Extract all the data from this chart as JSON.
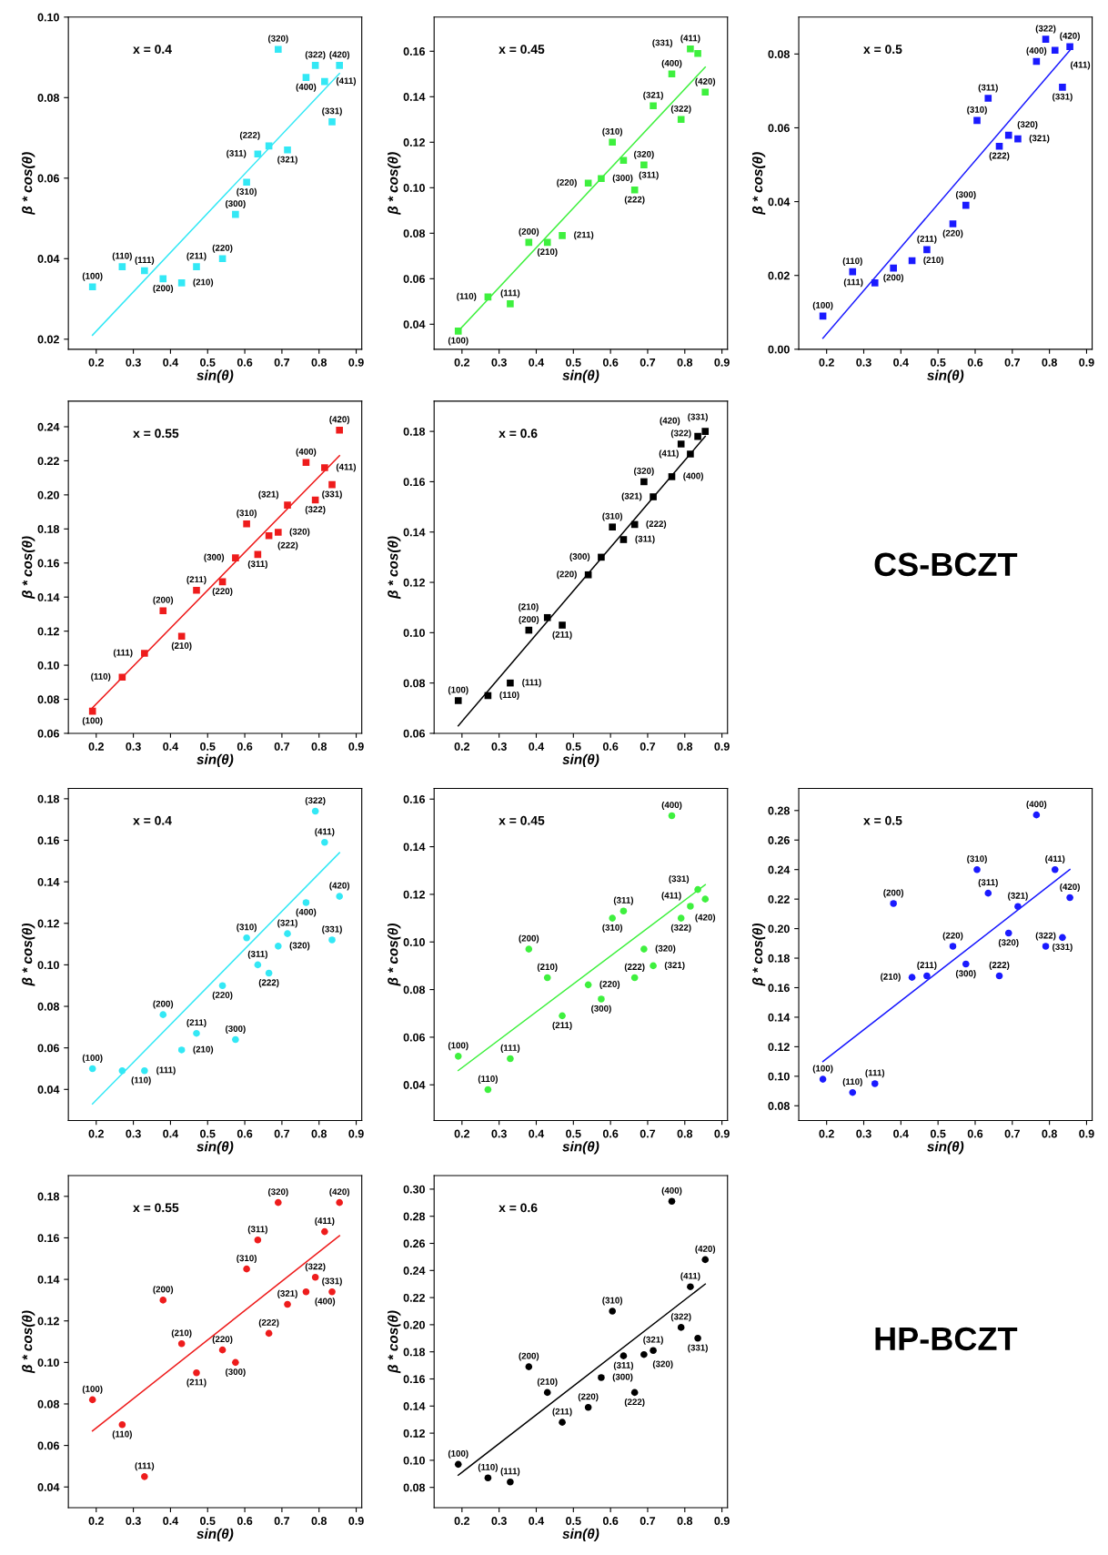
{
  "chart_data": [
    {
      "type": "scatter",
      "xlabel": "sin(θ)",
      "ylabel": "β * cos(θ)",
      "xlim": [
        0.125,
        0.915
      ],
      "ylim": [
        0.0175,
        0.1
      ],
      "xticks": [
        0.2,
        0.3,
        0.4,
        0.5,
        0.6,
        0.7,
        0.8,
        0.9
      ],
      "yticks": [
        0.02,
        0.04,
        0.06,
        0.08,
        {
          "value": 0.1,
          "label": "0.10"
        }
      ],
      "grid": false,
      "series": [
        {
          "type": "scatter",
          "marker": "square",
          "color": "#33e8f5",
          "x": [
            0.19,
            0.27,
            0.33,
            0.38,
            0.43,
            0.47,
            0.54,
            0.575,
            0.605,
            0.635,
            0.665,
            0.69,
            0.715,
            0.765,
            0.79,
            0.815,
            0.835,
            0.855
          ],
          "values": [
            0.033,
            0.038,
            0.037,
            0.035,
            0.034,
            0.038,
            0.04,
            0.051,
            0.059,
            0.066,
            0.068,
            0.092,
            0.067,
            0.085,
            0.088,
            0.084,
            0.074,
            0.088
          ]
        },
        {
          "type": "line",
          "marker": "none",
          "color": "#33e8f5",
          "x": [
            0.19,
            0.855
          ],
          "values": [
            0.021,
            0.086
          ]
        }
      ],
      "annotations": [
        "x = 0.4",
        {
          "text": "(100)",
          "x": 0.19,
          "y": 0.033
        },
        {
          "text": "(110)",
          "x": 0.27,
          "y": 0.038
        },
        {
          "text": "(111)",
          "x": 0.33,
          "y": 0.037
        },
        {
          "text": "(200)",
          "x": 0.38,
          "y": 0.035
        },
        {
          "text": "(210)",
          "x": 0.43,
          "y": 0.034
        },
        {
          "text": "(211)",
          "x": 0.47,
          "y": 0.038
        },
        {
          "text": "(220)",
          "x": 0.54,
          "y": 0.04
        },
        {
          "text": "(300)",
          "x": 0.575,
          "y": 0.051
        },
        {
          "text": "(310)",
          "x": 0.605,
          "y": 0.059
        },
        {
          "text": "(311)",
          "x": 0.635,
          "y": 0.066
        },
        {
          "text": "(222)",
          "x": 0.665,
          "y": 0.068
        },
        {
          "text": "(320)",
          "x": 0.69,
          "y": 0.092
        },
        {
          "text": "(321)",
          "x": 0.715,
          "y": 0.067
        },
        {
          "text": "(400)",
          "x": 0.765,
          "y": 0.085
        },
        {
          "text": "(322)",
          "x": 0.79,
          "y": 0.088
        },
        {
          "text": "(411)",
          "x": 0.815,
          "y": 0.084
        },
        {
          "text": "(331)",
          "x": 0.835,
          "y": 0.074
        },
        {
          "text": "(420)",
          "x": 0.855,
          "y": 0.088
        }
      ]
    },
    {
      "type": "scatter",
      "xlabel": "sin(θ)",
      "ylabel": "β * cos(θ)",
      "xlim": [
        0.125,
        0.915
      ],
      "ylim": [
        0.029,
        0.175
      ],
      "xticks": [
        0.2,
        0.3,
        0.4,
        0.5,
        0.6,
        0.7,
        0.8,
        0.9
      ],
      "yticks": [
        0.04,
        0.06,
        0.08,
        {
          "value": 0.1,
          "label": "0.10"
        },
        0.12,
        0.14,
        0.16
      ],
      "grid": false,
      "series": [
        {
          "type": "scatter",
          "marker": "square",
          "color": "#3ef03e",
          "x": [
            0.19,
            0.27,
            0.33,
            0.38,
            0.43,
            0.47,
            0.54,
            0.575,
            0.605,
            0.635,
            0.665,
            0.69,
            0.715,
            0.765,
            0.79,
            0.815,
            0.835,
            0.855
          ],
          "values": [
            0.037,
            0.052,
            0.049,
            0.076,
            0.076,
            0.079,
            0.102,
            0.104,
            0.12,
            0.112,
            0.099,
            0.11,
            0.136,
            0.15,
            0.13,
            0.161,
            0.159,
            0.142
          ]
        },
        {
          "type": "line",
          "marker": "none",
          "color": "#3ef03e",
          "x": [
            0.19,
            0.855
          ],
          "values": [
            0.037,
            0.153
          ]
        }
      ],
      "annotations": [
        "x = 0.45",
        {
          "text": "(100)",
          "x": 0.19,
          "y": 0.037
        },
        {
          "text": "(110)",
          "x": 0.27,
          "y": 0.052
        },
        {
          "text": "(111)",
          "x": 0.33,
          "y": 0.049
        },
        {
          "text": "(200)",
          "x": 0.38,
          "y": 0.076
        },
        {
          "text": "(210)",
          "x": 0.43,
          "y": 0.076
        },
        {
          "text": "(211)",
          "x": 0.47,
          "y": 0.079
        },
        {
          "text": "(220)",
          "x": 0.54,
          "y": 0.102
        },
        {
          "text": "(300)",
          "x": 0.575,
          "y": 0.104
        },
        {
          "text": "(310)",
          "x": 0.605,
          "y": 0.12
        },
        {
          "text": "(311)",
          "x": 0.635,
          "y": 0.112
        },
        {
          "text": "(222)",
          "x": 0.665,
          "y": 0.099
        },
        {
          "text": "(320)",
          "x": 0.69,
          "y": 0.11
        },
        {
          "text": "(321)",
          "x": 0.715,
          "y": 0.136
        },
        {
          "text": "(400)",
          "x": 0.765,
          "y": 0.15
        },
        {
          "text": "(322)",
          "x": 0.79,
          "y": 0.13
        },
        {
          "text": "(411)",
          "x": 0.815,
          "y": 0.161
        },
        {
          "text": "(331)",
          "x": 0.835,
          "y": 0.159
        },
        {
          "text": "(420)",
          "x": 0.855,
          "y": 0.142
        }
      ]
    },
    {
      "type": "scatter",
      "xlabel": "sin(θ)",
      "ylabel": "β * cos(θ)",
      "xlim": [
        0.125,
        0.915
      ],
      "ylim": [
        0,
        0.09
      ],
      "xticks": [
        0.2,
        0.3,
        0.4,
        0.5,
        0.6,
        0.7,
        0.8,
        0.9
      ],
      "yticks": [
        {
          "value": 0,
          "label": "0.00"
        },
        0.02,
        0.04,
        0.06,
        0.08
      ],
      "grid": false,
      "series": [
        {
          "type": "scatter",
          "marker": "square",
          "color": "#1a1aff",
          "x": [
            0.19,
            0.27,
            0.33,
            0.38,
            0.43,
            0.47,
            0.54,
            0.575,
            0.605,
            0.635,
            0.665,
            0.69,
            0.715,
            0.765,
            0.79,
            0.815,
            0.835,
            0.855
          ],
          "values": [
            0.009,
            0.021,
            0.018,
            0.022,
            0.024,
            0.027,
            0.034,
            0.039,
            0.062,
            0.068,
            0.055,
            0.058,
            0.057,
            0.078,
            0.084,
            0.081,
            0.071,
            0.082
          ]
        },
        {
          "type": "line",
          "marker": "none",
          "color": "#1a1aff",
          "x": [
            0.19,
            0.855
          ],
          "values": [
            0.003,
            0.081
          ]
        }
      ],
      "annotations": [
        "x = 0.5",
        {
          "text": "(100)",
          "x": 0.19,
          "y": 0.009
        },
        {
          "text": "(110)",
          "x": 0.27,
          "y": 0.021
        },
        {
          "text": "(111)",
          "x": 0.33,
          "y": 0.018
        },
        {
          "text": "(200)",
          "x": 0.38,
          "y": 0.022
        },
        {
          "text": "(210)",
          "x": 0.43,
          "y": 0.024
        },
        {
          "text": "(211)",
          "x": 0.47,
          "y": 0.027
        },
        {
          "text": "(220)",
          "x": 0.54,
          "y": 0.034
        },
        {
          "text": "(300)",
          "x": 0.575,
          "y": 0.039
        },
        {
          "text": "(310)",
          "x": 0.605,
          "y": 0.062
        },
        {
          "text": "(311)",
          "x": 0.635,
          "y": 0.068
        },
        {
          "text": "(222)",
          "x": 0.665,
          "y": 0.055
        },
        {
          "text": "(320)",
          "x": 0.69,
          "y": 0.058
        },
        {
          "text": "(321)",
          "x": 0.715,
          "y": 0.057
        },
        {
          "text": "(400)",
          "x": 0.765,
          "y": 0.078
        },
        {
          "text": "(322)",
          "x": 0.79,
          "y": 0.084
        },
        {
          "text": "(411)",
          "x": 0.815,
          "y": 0.081
        },
        {
          "text": "(331)",
          "x": 0.835,
          "y": 0.071
        },
        {
          "text": "(420)",
          "x": 0.855,
          "y": 0.082
        }
      ]
    },
    {
      "type": "scatter",
      "xlabel": "sin(θ)",
      "ylabel": "β * cos(θ)",
      "xlim": [
        0.125,
        0.915
      ],
      "ylim": [
        0.06,
        0.255
      ],
      "xticks": [
        0.2,
        0.3,
        0.4,
        0.5,
        0.6,
        0.7,
        0.8,
        0.9
      ],
      "yticks": [
        0.06,
        0.08,
        {
          "value": 0.1,
          "label": "0.10"
        },
        0.12,
        0.14,
        0.16,
        0.18,
        {
          "value": 0.2,
          "label": "0.20"
        },
        0.22,
        0.24
      ],
      "grid": false,
      "series": [
        {
          "type": "scatter",
          "marker": "square",
          "color": "#ee1c1c",
          "x": [
            0.19,
            0.27,
            0.33,
            0.38,
            0.43,
            0.47,
            0.54,
            0.575,
            0.605,
            0.635,
            0.665,
            0.69,
            0.715,
            0.765,
            0.79,
            0.815,
            0.835,
            0.855
          ],
          "values": [
            0.073,
            0.093,
            0.107,
            0.132,
            0.117,
            0.144,
            0.149,
            0.163,
            0.183,
            0.165,
            0.176,
            0.178,
            0.194,
            0.219,
            0.197,
            0.216,
            0.206,
            0.238
          ]
        },
        {
          "type": "line",
          "marker": "none",
          "color": "#ee1c1c",
          "x": [
            0.19,
            0.855
          ],
          "values": [
            0.075,
            0.223
          ]
        }
      ],
      "annotations": [
        "x = 0.55",
        {
          "text": "(100)",
          "x": 0.19,
          "y": 0.073
        },
        {
          "text": "(110)",
          "x": 0.27,
          "y": 0.093
        },
        {
          "text": "(111)",
          "x": 0.33,
          "y": 0.107
        },
        {
          "text": "(200)",
          "x": 0.38,
          "y": 0.132
        },
        {
          "text": "(210)",
          "x": 0.43,
          "y": 0.117
        },
        {
          "text": "(211)",
          "x": 0.47,
          "y": 0.144
        },
        {
          "text": "(220)",
          "x": 0.54,
          "y": 0.149
        },
        {
          "text": "(300)",
          "x": 0.575,
          "y": 0.163
        },
        {
          "text": "(310)",
          "x": 0.605,
          "y": 0.183
        },
        {
          "text": "(311)",
          "x": 0.635,
          "y": 0.165
        },
        {
          "text": "(222)",
          "x": 0.665,
          "y": 0.176
        },
        {
          "text": "(320)",
          "x": 0.69,
          "y": 0.178
        },
        {
          "text": "(321)",
          "x": 0.715,
          "y": 0.194
        },
        {
          "text": "(400)",
          "x": 0.765,
          "y": 0.219
        },
        {
          "text": "(322)",
          "x": 0.79,
          "y": 0.197
        },
        {
          "text": "(411)",
          "x": 0.815,
          "y": 0.216
        },
        {
          "text": "(331)",
          "x": 0.835,
          "y": 0.206
        },
        {
          "text": "(420)",
          "x": 0.855,
          "y": 0.238
        }
      ]
    },
    {
      "type": "scatter",
      "xlabel": "sin(θ)",
      "ylabel": "β * cos(θ)",
      "xlim": [
        0.125,
        0.915
      ],
      "ylim": [
        0.06,
        0.192
      ],
      "xticks": [
        0.2,
        0.3,
        0.4,
        0.5,
        0.6,
        0.7,
        0.8,
        0.9
      ],
      "yticks": [
        0.06,
        0.08,
        {
          "value": 0.1,
          "label": "0.10"
        },
        0.12,
        0.14,
        0.16,
        0.18
      ],
      "grid": false,
      "series": [
        {
          "type": "scatter",
          "marker": "square",
          "color": "#000000",
          "x": [
            0.19,
            0.27,
            0.33,
            0.38,
            0.43,
            0.47,
            0.54,
            0.575,
            0.605,
            0.635,
            0.665,
            0.69,
            0.715,
            0.765,
            0.79,
            0.815,
            0.835,
            0.855
          ],
          "values": [
            0.073,
            0.075,
            0.08,
            0.101,
            0.106,
            0.103,
            0.123,
            0.13,
            0.142,
            0.137,
            0.143,
            0.16,
            0.154,
            0.162,
            0.175,
            0.171,
            0.178,
            0.18
          ]
        },
        {
          "type": "line",
          "marker": "none",
          "color": "#000000",
          "x": [
            0.19,
            0.855
          ],
          "values": [
            0.063,
            0.178
          ]
        }
      ],
      "annotations": [
        "x = 0.6",
        {
          "text": "(100)",
          "x": 0.19,
          "y": 0.073
        },
        {
          "text": "(110)",
          "x": 0.27,
          "y": 0.075
        },
        {
          "text": "(111)",
          "x": 0.33,
          "y": 0.08
        },
        {
          "text": "(200)",
          "x": 0.38,
          "y": 0.101
        },
        {
          "text": "(210)",
          "x": 0.43,
          "y": 0.106
        },
        {
          "text": "(211)",
          "x": 0.47,
          "y": 0.103
        },
        {
          "text": "(220)",
          "x": 0.54,
          "y": 0.123
        },
        {
          "text": "(300)",
          "x": 0.575,
          "y": 0.13
        },
        {
          "text": "(310)",
          "x": 0.605,
          "y": 0.142
        },
        {
          "text": "(311)",
          "x": 0.635,
          "y": 0.137
        },
        {
          "text": "(222)",
          "x": 0.665,
          "y": 0.143
        },
        {
          "text": "(320)",
          "x": 0.69,
          "y": 0.16
        },
        {
          "text": "(321)",
          "x": 0.715,
          "y": 0.154
        },
        {
          "text": "(400)",
          "x": 0.765,
          "y": 0.162
        },
        {
          "text": "(322)",
          "x": 0.79,
          "y": 0.175
        },
        {
          "text": "(411)",
          "x": 0.815,
          "y": 0.171
        },
        {
          "text": "(331)",
          "x": 0.835,
          "y": 0.178
        },
        {
          "text": "(420)",
          "x": 0.855,
          "y": 0.18
        }
      ]
    },
    {
      "type": "other",
      "title": "CS-BCZT"
    },
    {
      "type": "scatter",
      "xlabel": "sin(θ)",
      "ylabel": "β * cos(θ)",
      "xlim": [
        0.125,
        0.915
      ],
      "ylim": [
        0.025,
        0.185
      ],
      "xticks": [
        0.2,
        0.3,
        0.4,
        0.5,
        0.6,
        0.7,
        0.8,
        0.9
      ],
      "yticks": [
        0.04,
        0.06,
        0.08,
        {
          "value": 0.1,
          "label": "0.10"
        },
        0.12,
        0.14,
        0.16,
        0.18
      ],
      "grid": false,
      "series": [
        {
          "type": "scatter",
          "marker": "circle",
          "color": "#33e8f5",
          "x": [
            0.19,
            0.27,
            0.33,
            0.38,
            0.43,
            0.47,
            0.54,
            0.575,
            0.605,
            0.635,
            0.665,
            0.69,
            0.715,
            0.765,
            0.79,
            0.815,
            0.835,
            0.855
          ],
          "values": [
            0.05,
            0.049,
            0.049,
            0.076,
            0.059,
            0.067,
            0.09,
            0.064,
            0.113,
            0.1,
            0.096,
            0.109,
            0.115,
            0.13,
            0.174,
            0.159,
            0.112,
            0.133
          ]
        },
        {
          "type": "line",
          "marker": "none",
          "color": "#33e8f5",
          "x": [
            0.19,
            0.855
          ],
          "values": [
            0.033,
            0.154
          ]
        }
      ],
      "annotations": [
        "x = 0.4",
        {
          "text": "(100)",
          "x": 0.19,
          "y": 0.05
        },
        {
          "text": "(110)",
          "x": 0.27,
          "y": 0.049
        },
        {
          "text": "(111)",
          "x": 0.33,
          "y": 0.049
        },
        {
          "text": "(200)",
          "x": 0.38,
          "y": 0.076
        },
        {
          "text": "(210)",
          "x": 0.43,
          "y": 0.059
        },
        {
          "text": "(211)",
          "x": 0.47,
          "y": 0.067
        },
        {
          "text": "(220)",
          "x": 0.54,
          "y": 0.09
        },
        {
          "text": "(300)",
          "x": 0.575,
          "y": 0.064
        },
        {
          "text": "(310)",
          "x": 0.605,
          "y": 0.113
        },
        {
          "text": "(311)",
          "x": 0.635,
          "y": 0.1
        },
        {
          "text": "(222)",
          "x": 0.665,
          "y": 0.096
        },
        {
          "text": "(320)",
          "x": 0.69,
          "y": 0.109
        },
        {
          "text": "(321)",
          "x": 0.715,
          "y": 0.115
        },
        {
          "text": "(400)",
          "x": 0.765,
          "y": 0.13
        },
        {
          "text": "(322)",
          "x": 0.79,
          "y": 0.174
        },
        {
          "text": "(411)",
          "x": 0.815,
          "y": 0.159
        },
        {
          "text": "(331)",
          "x": 0.835,
          "y": 0.112
        },
        {
          "text": "(420)",
          "x": 0.855,
          "y": 0.133
        }
      ]
    },
    {
      "type": "scatter",
      "xlabel": "sin(θ)",
      "ylabel": "β * cos(θ)",
      "xlim": [
        0.125,
        0.915
      ],
      "ylim": [
        0.025,
        0.1645
      ],
      "xticks": [
        0.2,
        0.3,
        0.4,
        0.5,
        0.6,
        0.7,
        0.8,
        0.9
      ],
      "yticks": [
        0.04,
        0.06,
        0.08,
        {
          "value": 0.1,
          "label": "0.10"
        },
        0.12,
        0.14,
        0.16
      ],
      "grid": false,
      "series": [
        {
          "type": "scatter",
          "marker": "circle",
          "color": "#3ef03e",
          "x": [
            0.19,
            0.27,
            0.33,
            0.38,
            0.43,
            0.47,
            0.54,
            0.575,
            0.605,
            0.635,
            0.665,
            0.69,
            0.715,
            0.765,
            0.79,
            0.815,
            0.835,
            0.855
          ],
          "values": [
            0.052,
            0.038,
            0.051,
            0.097,
            0.085,
            0.069,
            0.082,
            0.076,
            0.11,
            0.113,
            0.085,
            0.097,
            0.09,
            0.153,
            0.11,
            0.115,
            0.122,
            0.118
          ]
        },
        {
          "type": "line",
          "marker": "none",
          "color": "#3ef03e",
          "x": [
            0.19,
            0.855
          ],
          "values": [
            0.046,
            0.124
          ]
        }
      ],
      "annotations": [
        "x = 0.45",
        {
          "text": "(100)",
          "x": 0.19,
          "y": 0.052
        },
        {
          "text": "(110)",
          "x": 0.27,
          "y": 0.038
        },
        {
          "text": "(111)",
          "x": 0.33,
          "y": 0.051
        },
        {
          "text": "(200)",
          "x": 0.38,
          "y": 0.097
        },
        {
          "text": "(210)",
          "x": 0.43,
          "y": 0.085
        },
        {
          "text": "(211)",
          "x": 0.47,
          "y": 0.069
        },
        {
          "text": "(220)",
          "x": 0.54,
          "y": 0.082
        },
        {
          "text": "(300)",
          "x": 0.575,
          "y": 0.076
        },
        {
          "text": "(310)",
          "x": 0.605,
          "y": 0.11
        },
        {
          "text": "(311)",
          "x": 0.635,
          "y": 0.113
        },
        {
          "text": "(222)",
          "x": 0.665,
          "y": 0.085
        },
        {
          "text": "(320)",
          "x": 0.69,
          "y": 0.097
        },
        {
          "text": "(321)",
          "x": 0.715,
          "y": 0.09
        },
        {
          "text": "(400)",
          "x": 0.765,
          "y": 0.153
        },
        {
          "text": "(322)",
          "x": 0.79,
          "y": 0.11
        },
        {
          "text": "(411)",
          "x": 0.815,
          "y": 0.115
        },
        {
          "text": "(331)",
          "x": 0.835,
          "y": 0.122
        },
        {
          "text": "(420)",
          "x": 0.855,
          "y": 0.118
        }
      ]
    },
    {
      "type": "scatter",
      "xlabel": "sin(θ)",
      "ylabel": "β * cos(θ)",
      "xlim": [
        0.125,
        0.915
      ],
      "ylim": [
        0.07,
        0.295
      ],
      "xticks": [
        0.2,
        0.3,
        0.4,
        0.5,
        0.6,
        0.7,
        0.8,
        0.9
      ],
      "yticks": [
        0.08,
        {
          "value": 0.1,
          "label": "0.10"
        },
        0.12,
        0.14,
        0.16,
        0.18,
        {
          "value": 0.2,
          "label": "0.20"
        },
        0.22,
        0.24,
        0.26,
        0.28
      ],
      "grid": false,
      "series": [
        {
          "type": "scatter",
          "marker": "circle",
          "color": "#1a1aff",
          "x": [
            0.19,
            0.27,
            0.33,
            0.38,
            0.43,
            0.47,
            0.54,
            0.575,
            0.605,
            0.635,
            0.665,
            0.69,
            0.715,
            0.765,
            0.79,
            0.815,
            0.835,
            0.855
          ],
          "values": [
            0.098,
            0.089,
            0.095,
            0.217,
            0.167,
            0.168,
            0.188,
            0.176,
            0.24,
            0.224,
            0.168,
            0.197,
            0.215,
            0.277,
            0.188,
            0.24,
            0.194,
            0.221
          ]
        },
        {
          "type": "line",
          "marker": "none",
          "color": "#1a1aff",
          "x": [
            0.19,
            0.855
          ],
          "values": [
            0.11,
            0.24
          ]
        }
      ],
      "annotations": [
        "x = 0.5",
        {
          "text": "(100)",
          "x": 0.19,
          "y": 0.098
        },
        {
          "text": "(110)",
          "x": 0.27,
          "y": 0.089
        },
        {
          "text": "(111)",
          "x": 0.33,
          "y": 0.095
        },
        {
          "text": "(200)",
          "x": 0.38,
          "y": 0.217
        },
        {
          "text": "(210)",
          "x": 0.43,
          "y": 0.167
        },
        {
          "text": "(211)",
          "x": 0.47,
          "y": 0.168
        },
        {
          "text": "(220)",
          "x": 0.54,
          "y": 0.188
        },
        {
          "text": "(300)",
          "x": 0.575,
          "y": 0.176
        },
        {
          "text": "(310)",
          "x": 0.605,
          "y": 0.24
        },
        {
          "text": "(311)",
          "x": 0.635,
          "y": 0.224
        },
        {
          "text": "(222)",
          "x": 0.665,
          "y": 0.168
        },
        {
          "text": "(320)",
          "x": 0.69,
          "y": 0.197
        },
        {
          "text": "(321)",
          "x": 0.715,
          "y": 0.215
        },
        {
          "text": "(400)",
          "x": 0.765,
          "y": 0.277
        },
        {
          "text": "(322)",
          "x": 0.79,
          "y": 0.188
        },
        {
          "text": "(411)",
          "x": 0.815,
          "y": 0.24
        },
        {
          "text": "(331)",
          "x": 0.835,
          "y": 0.194
        },
        {
          "text": "(420)",
          "x": 0.855,
          "y": 0.221
        }
      ]
    },
    {
      "type": "scatter",
      "xlabel": "sin(θ)",
      "ylabel": "β * cos(θ)",
      "xlim": [
        0.125,
        0.915
      ],
      "ylim": [
        0.03,
        0.19
      ],
      "xticks": [
        0.2,
        0.3,
        0.4,
        0.5,
        0.6,
        0.7,
        0.8,
        0.9
      ],
      "yticks": [
        0.04,
        0.06,
        0.08,
        {
          "value": 0.1,
          "label": "0.10"
        },
        0.12,
        0.14,
        0.16,
        0.18
      ],
      "grid": false,
      "series": [
        {
          "type": "scatter",
          "marker": "circle",
          "color": "#ee1c1c",
          "x": [
            0.19,
            0.27,
            0.33,
            0.38,
            0.43,
            0.47,
            0.54,
            0.575,
            0.605,
            0.635,
            0.665,
            0.69,
            0.715,
            0.765,
            0.79,
            0.815,
            0.835,
            0.855
          ],
          "values": [
            0.082,
            0.07,
            0.045,
            0.13,
            0.109,
            0.095,
            0.106,
            0.1,
            0.145,
            0.159,
            0.114,
            0.177,
            0.128,
            0.134,
            0.141,
            0.163,
            0.134,
            0.177
          ]
        },
        {
          "type": "line",
          "marker": "none",
          "color": "#ee1c1c",
          "x": [
            0.19,
            0.855
          ],
          "values": [
            0.067,
            0.161
          ]
        }
      ],
      "annotations": [
        "x = 0.55",
        {
          "text": "(100)",
          "x": 0.19,
          "y": 0.082
        },
        {
          "text": "(110)",
          "x": 0.27,
          "y": 0.07
        },
        {
          "text": "(111)",
          "x": 0.33,
          "y": 0.045
        },
        {
          "text": "(200)",
          "x": 0.38,
          "y": 0.13
        },
        {
          "text": "(210)",
          "x": 0.43,
          "y": 0.109
        },
        {
          "text": "(211)",
          "x": 0.47,
          "y": 0.095
        },
        {
          "text": "(220)",
          "x": 0.54,
          "y": 0.106
        },
        {
          "text": "(300)",
          "x": 0.575,
          "y": 0.1
        },
        {
          "text": "(310)",
          "x": 0.605,
          "y": 0.145
        },
        {
          "text": "(311)",
          "x": 0.635,
          "y": 0.159
        },
        {
          "text": "(222)",
          "x": 0.665,
          "y": 0.114
        },
        {
          "text": "(320)",
          "x": 0.69,
          "y": 0.177
        },
        {
          "text": "(321)",
          "x": 0.715,
          "y": 0.128
        },
        {
          "text": "(400)",
          "x": 0.765,
          "y": 0.134
        },
        {
          "text": "(322)",
          "x": 0.79,
          "y": 0.141
        },
        {
          "text": "(411)",
          "x": 0.815,
          "y": 0.163
        },
        {
          "text": "(331)",
          "x": 0.835,
          "y": 0.134
        },
        {
          "text": "(420)",
          "x": 0.855,
          "y": 0.177
        }
      ]
    },
    {
      "type": "scatter",
      "xlabel": "sin(θ)",
      "ylabel": "β * cos(θ)",
      "xlim": [
        0.125,
        0.915
      ],
      "ylim": [
        0.065,
        0.31
      ],
      "xticks": [
        0.2,
        0.3,
        0.4,
        0.5,
        0.6,
        0.7,
        0.8,
        0.9
      ],
      "yticks": [
        0.08,
        {
          "value": 0.1,
          "label": "0.10"
        },
        0.12,
        0.14,
        0.16,
        0.18,
        {
          "value": 0.2,
          "label": "0.20"
        },
        0.22,
        0.24,
        0.26,
        0.28,
        {
          "value": 0.3,
          "label": "0.30"
        }
      ],
      "grid": false,
      "series": [
        {
          "type": "scatter",
          "marker": "circle",
          "color": "#000000",
          "x": [
            0.19,
            0.27,
            0.33,
            0.38,
            0.43,
            0.47,
            0.54,
            0.575,
            0.605,
            0.635,
            0.665,
            0.69,
            0.715,
            0.765,
            0.79,
            0.815,
            0.835,
            0.855
          ],
          "values": [
            0.097,
            0.087,
            0.084,
            0.169,
            0.15,
            0.128,
            0.139,
            0.161,
            0.21,
            0.177,
            0.15,
            0.178,
            0.181,
            0.291,
            0.198,
            0.228,
            0.19,
            0.248
          ]
        },
        {
          "type": "line",
          "marker": "none",
          "color": "#000000",
          "x": [
            0.19,
            0.855
          ],
          "values": [
            0.089,
            0.23
          ]
        }
      ],
      "annotations": [
        "x = 0.6",
        {
          "text": "(100)",
          "x": 0.19,
          "y": 0.097
        },
        {
          "text": "(110)",
          "x": 0.27,
          "y": 0.087
        },
        {
          "text": "(111)",
          "x": 0.33,
          "y": 0.084
        },
        {
          "text": "(200)",
          "x": 0.38,
          "y": 0.169
        },
        {
          "text": "(210)",
          "x": 0.43,
          "y": 0.15
        },
        {
          "text": "(211)",
          "x": 0.47,
          "y": 0.128
        },
        {
          "text": "(220)",
          "x": 0.54,
          "y": 0.139
        },
        {
          "text": "(300)",
          "x": 0.575,
          "y": 0.161
        },
        {
          "text": "(310)",
          "x": 0.605,
          "y": 0.21
        },
        {
          "text": "(311)",
          "x": 0.635,
          "y": 0.177
        },
        {
          "text": "(222)",
          "x": 0.665,
          "y": 0.15
        },
        {
          "text": "(320)",
          "x": 0.69,
          "y": 0.178
        },
        {
          "text": "(321)",
          "x": 0.715,
          "y": 0.181
        },
        {
          "text": "(400)",
          "x": 0.765,
          "y": 0.291
        },
        {
          "text": "(322)",
          "x": 0.79,
          "y": 0.198
        },
        {
          "text": "(411)",
          "x": 0.815,
          "y": 0.228
        },
        {
          "text": "(331)",
          "x": 0.835,
          "y": 0.19
        },
        {
          "text": "(420)",
          "x": 0.855,
          "y": 0.248
        }
      ]
    },
    {
      "type": "other",
      "title": "HP-BCZT"
    }
  ]
}
